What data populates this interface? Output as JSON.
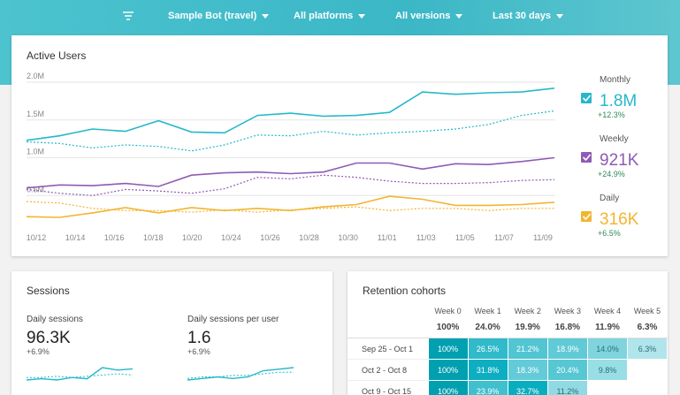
{
  "toolbar": {
    "filters": [
      "Sample Bot (travel)",
      "All platforms",
      "All versions",
      "Last 30 days"
    ]
  },
  "chart_data": {
    "type": "line",
    "title": "Active Users",
    "xtick_labels": [
      "10/12",
      "10/14",
      "10/16",
      "10/18",
      "10/20",
      "10/24",
      "10/26",
      "10/28",
      "10/30",
      "11/01",
      "11/03",
      "11/05",
      "11/07",
      "11/09"
    ],
    "ylim": [
      0,
      2000000
    ],
    "yticks": [
      {
        "value": 500000,
        "label": "0.5M"
      },
      {
        "value": 1000000,
        "label": "1.0M"
      },
      {
        "value": 1500000,
        "label": "1.5M"
      },
      {
        "value": 2000000,
        "label": "2.0M"
      }
    ],
    "grid": true,
    "series": [
      {
        "name": "Monthly",
        "color": "#26b8c9",
        "value_label": "1.8M",
        "change": "+12.3%",
        "values": [
          1230000,
          1290000,
          1380000,
          1350000,
          1490000,
          1340000,
          1330000,
          1560000,
          1590000,
          1550000,
          1560000,
          1600000,
          1870000,
          1840000,
          1860000,
          1870000,
          1920000
        ]
      },
      {
        "color": "#26b8c9",
        "dashed": true,
        "values": [
          1210000,
          1190000,
          1130000,
          1170000,
          1150000,
          1090000,
          1170000,
          1300000,
          1290000,
          1350000,
          1300000,
          1330000,
          1350000,
          1380000,
          1440000,
          1560000,
          1620000
        ]
      },
      {
        "name": "Weekly",
        "color": "#8e5bb5",
        "value_label": "921K",
        "change": "+24.9%",
        "values": [
          600000,
          640000,
          630000,
          660000,
          620000,
          770000,
          800000,
          810000,
          790000,
          810000,
          930000,
          930000,
          850000,
          920000,
          910000,
          950000,
          1000000
        ]
      },
      {
        "color": "#8e5bb5",
        "dashed": true,
        "values": [
          580000,
          530000,
          500000,
          580000,
          560000,
          530000,
          590000,
          740000,
          720000,
          770000,
          740000,
          690000,
          660000,
          660000,
          670000,
          700000,
          710000
        ]
      },
      {
        "name": "Daily",
        "color": "#f2b531",
        "value_label": "316K",
        "change": "+6.5%",
        "values": [
          220000,
          210000,
          270000,
          340000,
          270000,
          340000,
          300000,
          330000,
          300000,
          350000,
          380000,
          490000,
          450000,
          370000,
          370000,
          380000,
          410000
        ]
      },
      {
        "color": "#f2b531",
        "dashed": true,
        "values": [
          420000,
          400000,
          330000,
          300000,
          300000,
          280000,
          310000,
          280000,
          310000,
          330000,
          350000,
          300000,
          330000,
          330000,
          300000,
          330000,
          330000
        ]
      }
    ]
  },
  "sessions": {
    "title": "Sessions",
    "metrics": [
      {
        "label": "Daily sessions",
        "value": "96.3K",
        "change": "+6.9%",
        "sparkline": [
          88,
          89,
          88,
          90,
          89,
          98,
          96,
          97
        ],
        "previous": [
          90,
          90,
          91,
          90,
          91,
          92,
          93,
          92
        ]
      },
      {
        "label": "Daily sessions per user",
        "value": "1.6",
        "change": "+6.9%",
        "sparkline": [
          1.5,
          1.51,
          1.52,
          1.51,
          1.52,
          1.56,
          1.57,
          1.58
        ],
        "previous": [
          1.51,
          1.52,
          1.52,
          1.53,
          1.53,
          1.54,
          1.55,
          1.55
        ]
      }
    ]
  },
  "retention": {
    "title": "Retention cohorts",
    "weeks": [
      "Week 0",
      "Week 1",
      "Week 2",
      "Week 3",
      "Week 4",
      "Week 5"
    ],
    "totals": [
      "100%",
      "24.0%",
      "19.9%",
      "16.8%",
      "11.9%",
      "6.3%"
    ],
    "rows": [
      {
        "label": "Sep 25 - Oct 1",
        "cells": [
          "100%",
          "26.5%",
          "21.2%",
          "18.9%",
          "14.0%",
          "6.3%"
        ]
      },
      {
        "label": "Oct 2 - Oct 8",
        "cells": [
          "100%",
          "31.8%",
          "18.3%",
          "20.4%",
          "9.8%"
        ]
      },
      {
        "label": "Oct 9 - Oct 15",
        "cells": [
          "100%",
          "23.9%",
          "32.7%",
          "11.2%"
        ]
      }
    ]
  }
}
